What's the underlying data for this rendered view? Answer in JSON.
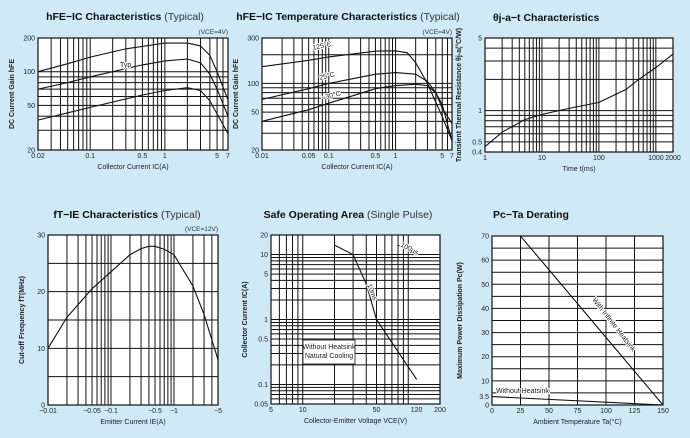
{
  "chart_data": [
    {
      "type": "line",
      "title": "hFE−IC Characteristics",
      "subtitle": "(Typical)",
      "condition": "(VCE=4V)",
      "xlabel": "Collector Current IC(A)",
      "ylabel": "DC Current Gain hFE",
      "xscale": "log",
      "yscale": "log",
      "xlim": [
        0.02,
        7
      ],
      "ylim": [
        20,
        200
      ],
      "grid": true,
      "xticks": [
        {
          "v": 0.02,
          "l": "0.02"
        },
        {
          "v": 0.1,
          "l": "0.1"
        },
        {
          "v": 0.5,
          "l": "0.5"
        },
        {
          "v": 1,
          "l": "1"
        },
        {
          "v": 5,
          "l": "5"
        },
        {
          "v": 7,
          "l": "7"
        }
      ],
      "yticks": [
        {
          "v": 20,
          "l": "20"
        },
        {
          "v": 50,
          "l": "50"
        },
        {
          "v": 100,
          "l": "100"
        },
        {
          "v": 200,
          "l": "200"
        }
      ],
      "series": [
        {
          "x": [
            0.02,
            0.05,
            0.1,
            0.3,
            1,
            2,
            3,
            4,
            5,
            7
          ],
          "y": [
            100,
            118,
            135,
            160,
            180,
            180,
            170,
            140,
            100,
            56
          ]
        },
        {
          "name": "Typ",
          "x": [
            0.02,
            0.05,
            0.1,
            0.5,
            1,
            2,
            3,
            4,
            5,
            7
          ],
          "y": [
            70,
            80,
            90,
            115,
            125,
            130,
            120,
            95,
            70,
            40
          ]
        },
        {
          "x": [
            0.02,
            0.05,
            0.1,
            0.5,
            1,
            2,
            3,
            4,
            5,
            7
          ],
          "y": [
            37,
            43,
            48,
            62,
            68,
            72,
            68,
            55,
            42,
            28
          ]
        }
      ]
    },
    {
      "type": "line",
      "title": "hFE−IC Temperature Characteristics",
      "subtitle": "(Typical)",
      "condition": "(VCE=4V)",
      "xlabel": "Collector Current IC(A)",
      "ylabel": "DC Current Gain hFE",
      "xscale": "log",
      "yscale": "log",
      "xlim": [
        0.01,
        7
      ],
      "ylim": [
        20,
        300
      ],
      "grid": true,
      "xticks": [
        {
          "v": 0.01,
          "l": "0.01"
        },
        {
          "v": 0.05,
          "l": "0.05"
        },
        {
          "v": 0.1,
          "l": "0.1"
        },
        {
          "v": 0.5,
          "l": "0.5"
        },
        {
          "v": 1,
          "l": "1"
        },
        {
          "v": 5,
          "l": "5"
        },
        {
          "v": 7,
          "l": "7"
        }
      ],
      "yticks": [
        {
          "v": 20,
          "l": "20"
        },
        {
          "v": 50,
          "l": "50"
        },
        {
          "v": 100,
          "l": "100"
        },
        {
          "v": 300,
          "l": "300"
        }
      ],
      "series": [
        {
          "name": "125°C",
          "x": [
            0.01,
            0.05,
            0.1,
            0.5,
            1,
            1.5,
            2,
            3,
            5,
            7
          ],
          "y": [
            150,
            175,
            190,
            218,
            220,
            210,
            165,
            100,
            45,
            25
          ]
        },
        {
          "name": "25°C",
          "x": [
            0.01,
            0.05,
            0.1,
            0.5,
            1,
            2,
            3,
            4,
            5,
            7
          ],
          "y": [
            68,
            88,
            100,
            125,
            130,
            125,
            105,
            80,
            55,
            38
          ]
        },
        {
          "name": "−30°C",
          "x": [
            0.01,
            0.05,
            0.1,
            0.5,
            1,
            2,
            3,
            4,
            5,
            7
          ],
          "y": [
            40,
            53,
            62,
            88,
            95,
            98,
            95,
            80,
            60,
            25
          ]
        }
      ]
    },
    {
      "type": "line",
      "title": "θj-a−t Characteristics",
      "subtitle": "",
      "condition": "",
      "xlabel": "Time t(ms)",
      "ylabel": "Transient Thermal Resistance θj-a(°C/W)",
      "xscale": "log",
      "yscale": "log",
      "xlim": [
        1,
        2000
      ],
      "ylim": [
        0.4,
        5
      ],
      "grid": true,
      "xticks": [
        {
          "v": 1,
          "l": "1"
        },
        {
          "v": 10,
          "l": "10"
        },
        {
          "v": 100,
          "l": "100"
        },
        {
          "v": 1000,
          "l": "1000"
        },
        {
          "v": 2000,
          "l": "2000"
        }
      ],
      "yticks": [
        {
          "v": 0.4,
          "l": "0.4"
        },
        {
          "v": 0.5,
          "l": "0.5"
        },
        {
          "v": 1,
          "l": "1"
        },
        {
          "v": 5,
          "l": "5"
        }
      ],
      "series": [
        {
          "x": [
            1,
            2,
            5,
            10,
            30,
            100,
            300,
            500,
            1000,
            2000
          ],
          "y": [
            0.45,
            0.62,
            0.82,
            0.92,
            1.05,
            1.2,
            1.6,
            2.0,
            2.6,
            3.5
          ]
        }
      ]
    },
    {
      "type": "line",
      "title": "fT−IE Characteristics",
      "subtitle": "(Typical)",
      "condition": "(VCE=12V)",
      "xlabel": "Emitter Current IE(A)",
      "ylabel": "Cut-off Frequency fT(MHz)",
      "xscale": "log",
      "yscale": "linear",
      "xlim": [
        -0.01,
        -5
      ],
      "ylim": [
        0,
        30
      ],
      "grid": true,
      "xticks": [
        {
          "v": -0.01,
          "l": "−0.01"
        },
        {
          "v": -0.05,
          "l": "−0.05"
        },
        {
          "v": -0.1,
          "l": "−0.1"
        },
        {
          "v": -0.5,
          "l": "−0.5"
        },
        {
          "v": -1,
          "l": "−1"
        },
        {
          "v": -5,
          "l": "−5"
        }
      ],
      "yticks": [
        {
          "v": 0,
          "l": "0"
        },
        {
          "v": 10,
          "l": "10"
        },
        {
          "v": 20,
          "l": "20"
        },
        {
          "v": 30,
          "l": "30"
        }
      ],
      "series": [
        {
          "x": [
            -0.01,
            -0.02,
            -0.05,
            -0.1,
            -0.2,
            -0.3,
            -0.4,
            -0.5,
            -0.7,
            -1,
            -2,
            -3,
            -5
          ],
          "y": [
            10,
            15.5,
            20.5,
            23.5,
            26.5,
            27.6,
            28,
            28,
            27.5,
            26.5,
            21,
            16,
            8
          ]
        }
      ]
    },
    {
      "type": "line",
      "title": "Safe Operating Area",
      "subtitle": "(Single Pulse)",
      "condition": "",
      "xlabel": "Collector-Emitter Voltage VCE(V)",
      "ylabel": "Collector Current IC(A)",
      "xscale": "log",
      "yscale": "log",
      "xlim": [
        5,
        200
      ],
      "ylim": [
        0.05,
        20
      ],
      "grid": true,
      "xticks": [
        {
          "v": 5,
          "l": "5"
        },
        {
          "v": 10,
          "l": "10"
        },
        {
          "v": 50,
          "l": "50"
        },
        {
          "v": 120,
          "l": "120"
        },
        {
          "v": 200,
          "l": "200"
        }
      ],
      "yticks": [
        {
          "v": 0.05,
          "l": "0.05"
        },
        {
          "v": 0.1,
          "l": "0.1"
        },
        {
          "v": 0.5,
          "l": "0.5"
        },
        {
          "v": 1,
          "l": "1"
        },
        {
          "v": 5,
          "l": "5"
        },
        {
          "v": 10,
          "l": "10"
        },
        {
          "v": 20,
          "l": "20"
        }
      ],
      "series": [
        {
          "name": "10ms",
          "x": [
            20,
            30,
            40,
            50,
            120
          ],
          "y": [
            14,
            10,
            3.5,
            1,
            0.12
          ]
        },
        {
          "name": "100μs",
          "x": [
            80,
            120
          ],
          "y": [
            14,
            10
          ]
        }
      ],
      "annotation": [
        "Without Heatsink",
        "Natural Cooling"
      ]
    },
    {
      "type": "line",
      "title": "Pc−Ta Derating",
      "subtitle": "",
      "condition": "",
      "xlabel": "Ambient Temperature Ta(°C)",
      "ylabel": "Maximum Power Dissipation Pc(W)",
      "xscale": "linear",
      "yscale": "linear",
      "xlim": [
        0,
        150
      ],
      "ylim": [
        0,
        70
      ],
      "grid": true,
      "xticks": [
        {
          "v": 0,
          "l": "0"
        },
        {
          "v": 25,
          "l": "25"
        },
        {
          "v": 50,
          "l": "50"
        },
        {
          "v": 75,
          "l": "75"
        },
        {
          "v": 100,
          "l": "100"
        },
        {
          "v": 125,
          "l": "125"
        },
        {
          "v": 150,
          "l": "150"
        }
      ],
      "yticks": [
        {
          "v": 0,
          "l": "0"
        },
        {
          "v": 3.5,
          "l": "3.5"
        },
        {
          "v": 10,
          "l": "10"
        },
        {
          "v": 20,
          "l": "20"
        },
        {
          "v": 30,
          "l": "30"
        },
        {
          "v": 40,
          "l": "40"
        },
        {
          "v": 50,
          "l": "50"
        },
        {
          "v": 60,
          "l": "60"
        },
        {
          "v": 70,
          "l": "70"
        }
      ],
      "series": [
        {
          "name": "With Infinite Heatsink",
          "x": [
            0,
            25,
            150
          ],
          "y": [
            70,
            70,
            0
          ]
        },
        {
          "name": "Without Heatsink",
          "x": [
            0,
            150
          ],
          "y": [
            3.5,
            0
          ]
        }
      ]
    }
  ]
}
